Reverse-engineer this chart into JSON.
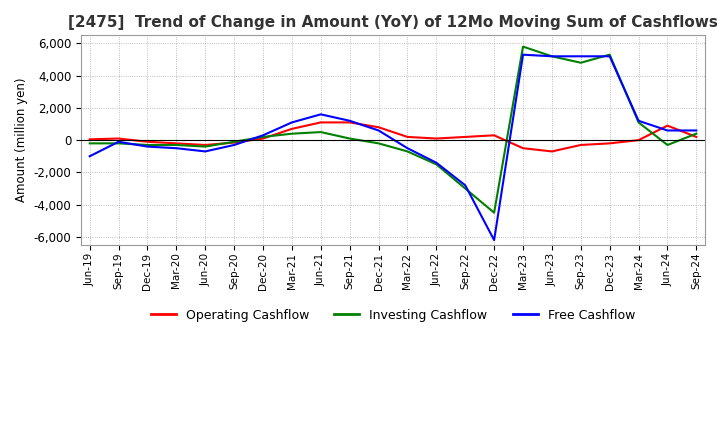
{
  "title": "[2475]  Trend of Change in Amount (YoY) of 12Mo Moving Sum of Cashflows",
  "ylabel": "Amount (million yen)",
  "ylim": [
    -6500,
    6500
  ],
  "yticks": [
    -6000,
    -4000,
    -2000,
    0,
    2000,
    4000,
    6000
  ],
  "x_labels": [
    "Jun-19",
    "Sep-19",
    "Dec-19",
    "Mar-20",
    "Jun-20",
    "Sep-20",
    "Dec-20",
    "Mar-21",
    "Jun-21",
    "Sep-21",
    "Dec-21",
    "Mar-22",
    "Jun-22",
    "Sep-22",
    "Dec-22",
    "Mar-23",
    "Jun-23",
    "Sep-23",
    "Dec-23",
    "Mar-24",
    "Jun-24",
    "Sep-24"
  ],
  "operating_cashflow": [
    50,
    100,
    -100,
    -200,
    -300,
    -150,
    100,
    700,
    1100,
    1100,
    800,
    200,
    100,
    200,
    300,
    -500,
    -700,
    -300,
    -200,
    0,
    900,
    200
  ],
  "investing_cashflow": [
    -200,
    -200,
    -300,
    -300,
    -400,
    -100,
    200,
    400,
    500,
    100,
    -200,
    -700,
    -1500,
    -3000,
    -4500,
    5800,
    5200,
    4800,
    5300,
    1100,
    -300,
    400
  ],
  "free_cashflow": [
    -1000,
    -100,
    -400,
    -500,
    -700,
    -300,
    300,
    1100,
    1600,
    1200,
    600,
    -500,
    -1400,
    -2800,
    -6200,
    5300,
    5200,
    5200,
    5200,
    1200,
    600,
    600
  ],
  "line_colors": {
    "operating": "#ff0000",
    "investing": "#008000",
    "free": "#0000ff"
  },
  "background_color": "#ffffff",
  "grid_color": "#aaaaaa",
  "title_color": "#333333",
  "title_fontsize": 11,
  "legend_labels": [
    "Operating Cashflow",
    "Investing Cashflow",
    "Free Cashflow"
  ]
}
